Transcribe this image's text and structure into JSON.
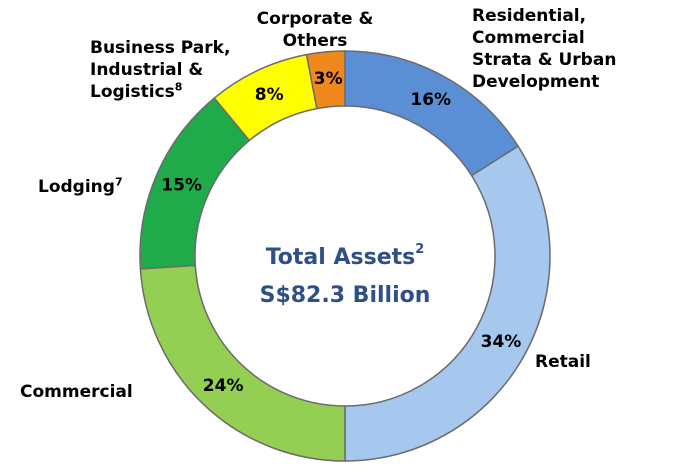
{
  "chart_data": {
    "type": "donut",
    "categories": [
      "Residential, Commercial Strata & Urban Development",
      "Retail",
      "Commercial",
      "Lodging",
      "Business Park, Industrial & Logistics",
      "Corporate & Others"
    ],
    "category_notes": [
      null,
      null,
      null,
      "7",
      "8",
      null
    ],
    "values": [
      16,
      34,
      24,
      15,
      8,
      3
    ],
    "value_labels": [
      "16%",
      "34%",
      "24%",
      "15%",
      "8%",
      "3%"
    ],
    "colors": [
      "#5a8fd6",
      "#a6c7ee",
      "#93cf52",
      "#20ab4a",
      "#ffff00",
      "#f0891c"
    ],
    "center_title": "Total Assets",
    "center_title_note": "2",
    "center_value": "S$82.3 Billion"
  }
}
